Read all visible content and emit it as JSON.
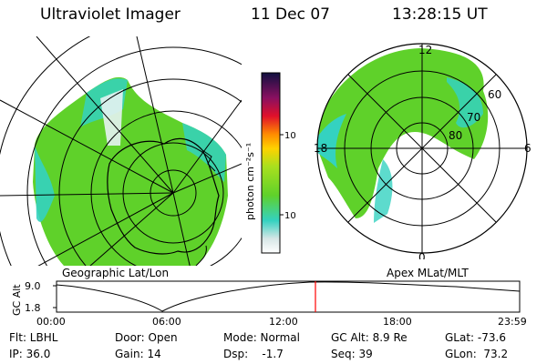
{
  "header": {
    "title": "Ultraviolet Imager",
    "date": "11 Dec 07",
    "time": "13:28:15 UT"
  },
  "left_map": {
    "caption": "Geographic Lat/Lon"
  },
  "right_map": {
    "caption": "Apex MLat/MLT",
    "hour_labels": {
      "top": "12",
      "left": "18",
      "right": "6",
      "bottom": "0"
    },
    "lat_labels": [
      "60",
      "70",
      "80"
    ]
  },
  "colorbar": {
    "unit_label": "photon cm⁻²s⁻¹",
    "tick_labels": [
      "100",
      "10"
    ]
  },
  "timeline": {
    "ylabel": "GC Alt",
    "y_ticks": [
      "9.0",
      "1.8"
    ],
    "x_ticks": [
      "00:00",
      "06:00",
      "12:00",
      "18:00",
      "23:59"
    ]
  },
  "info": {
    "row1": [
      "Flt: LBHL",
      "Door: Open",
      "Mode: Normal",
      "GC Alt: 8.9 Re",
      "GLat: -73.6"
    ],
    "row2": [
      "IP: 36.0",
      "Gain: 14",
      "Dsp:    -1.7",
      "Seq: 39",
      "GLon:  73.2"
    ]
  },
  "colors": {
    "aurora_green": "#5fd12a",
    "aurora_cyan": "#34d2c0",
    "marker_red": "#ff0000"
  }
}
